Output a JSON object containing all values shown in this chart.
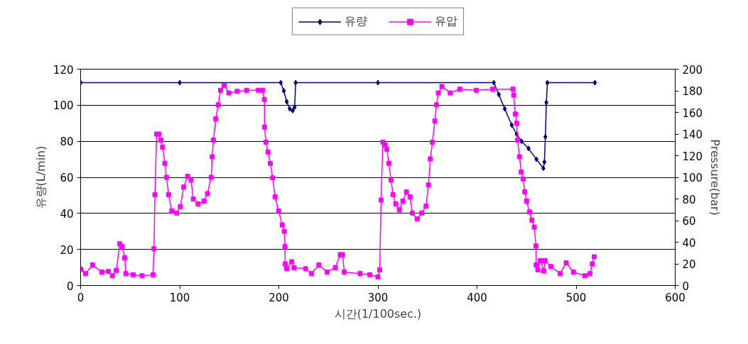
{
  "chart_data": {
    "type": "line",
    "xlabel": "시간(1/100sec.)",
    "ylabel": "유량(L/min)",
    "y2label": "Pressure(bar)",
    "xlim": [
      0,
      600
    ],
    "xticks": [
      0,
      100,
      200,
      300,
      400,
      500,
      600
    ],
    "ylim": [
      0,
      120
    ],
    "yticks": [
      0,
      20,
      40,
      60,
      80,
      100,
      120
    ],
    "y2lim": [
      0,
      200
    ],
    "y2ticks": [
      0,
      20,
      40,
      60,
      80,
      100,
      120,
      140,
      160,
      180,
      200
    ],
    "grid": "y",
    "legend": "top",
    "series": [
      {
        "name": "유량",
        "color": "#000080",
        "marker": "diamond",
        "x": [
          0,
          100,
          202,
          205,
          208,
          211,
          214,
          216,
          217,
          300,
          417,
          422,
          428,
          435,
          440,
          445,
          452,
          460,
          467,
          468,
          469,
          470,
          471,
          519
        ],
        "values": [
          112.5,
          112.5,
          112.5,
          108,
          102,
          98,
          97,
          99,
          112.5,
          112.5,
          112.5,
          106,
          98,
          89,
          84,
          80,
          76,
          70,
          65,
          68.5,
          82.5,
          101.5,
          112.5,
          112.5
        ]
      },
      {
        "name": "유압",
        "color": "#ff00ff",
        "marker": "square",
        "axis": "y2",
        "x": [
          0,
          5,
          12,
          21.5,
          28,
          32,
          36,
          39.5,
          42,
          44.5,
          45.6,
          53,
          62,
          73,
          74,
          75,
          76.7,
          79,
          81,
          82.7,
          85,
          86.7,
          88.7,
          92,
          97,
          100.6,
          104,
          108,
          111.4,
          113.7,
          118.5,
          124.5,
          128,
          131.7,
          132.8,
          134,
          136.4,
          138.8,
          141.2,
          144.8,
          149.6,
          158,
          167.5,
          179.4,
          183.7,
          185.4,
          185.6,
          187,
          189,
          191.4,
          193.8,
          196.2,
          199.8,
          203.4,
          205.5,
          206.2,
          206.4,
          208,
          213,
          215.3,
          227,
          233,
          240.4,
          248.7,
          257,
          262,
          264.3,
          266,
          282,
          291.8,
          300,
          301.8,
          303.2,
          305,
          307.4,
          309,
          311,
          313.3,
          315.2,
          318,
          321.6,
          325.2,
          328.8,
          332.4,
          334.8,
          339.6,
          344.3,
          348.6,
          351,
          352.9,
          355,
          357.5,
          359.1,
          361,
          364.6,
          373,
          382.6,
          399.3,
          416,
          436.3,
          437,
          438.7,
          440,
          441,
          442.8,
          444.7,
          446.6,
          448.2,
          450,
          453,
          455.4,
          457.8,
          459.5,
          459.7,
          461.4,
          463.8,
          467.4,
          468.6,
          474.5,
          484,
          490,
          497.3,
          509,
          514,
          516.4,
          518.3
        ],
        "values": [
          15,
          11,
          19,
          12.5,
          13,
          9,
          14,
          38.5,
          36,
          25.5,
          11,
          10,
          9,
          10,
          34,
          84,
          140,
          140,
          134.5,
          128,
          113,
          100,
          84,
          69,
          67,
          73,
          91,
          101,
          97.5,
          80,
          75.5,
          78,
          85,
          100,
          119,
          134.5,
          154,
          167,
          180.5,
          185,
          178,
          179.5,
          180.5,
          180.5,
          180.5,
          172,
          146.5,
          132.5,
          123.5,
          113,
          99.5,
          82,
          69,
          56,
          50,
          36,
          20,
          15.5,
          22,
          16.5,
          15.5,
          11,
          19,
          12.5,
          16.5,
          28.5,
          28.5,
          12.5,
          11,
          10,
          8,
          14.5,
          79,
          132.5,
          130,
          126,
          113,
          97.5,
          84,
          75.5,
          70,
          78,
          86.5,
          82,
          67,
          61.5,
          67,
          73.5,
          93,
          117,
          132.5,
          152,
          167,
          178,
          184,
          178,
          181.5,
          180.5,
          181.5,
          181.5,
          176,
          158.5,
          150,
          134.5,
          119,
          105,
          98.5,
          86.5,
          78,
          68,
          60.5,
          54,
          36.5,
          19,
          14.5,
          23,
          13.5,
          23,
          17.5,
          11,
          21,
          12.5,
          9,
          11,
          20,
          26.5
        ]
      }
    ]
  }
}
